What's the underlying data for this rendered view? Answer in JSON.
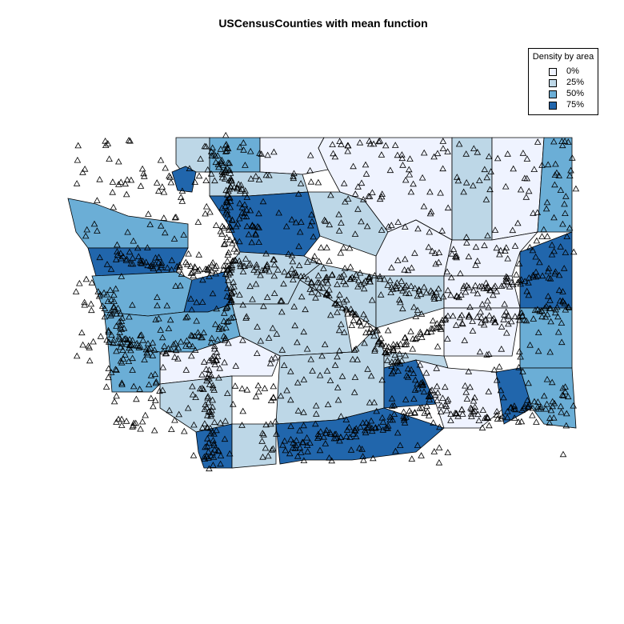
{
  "title": "USCensusCounties with mean function",
  "legend": {
    "title": "Density by area",
    "items": [
      {
        "label": "0%",
        "color": "#eff3ff"
      },
      {
        "label": "25%",
        "color": "#bdd7e7"
      },
      {
        "label": "50%",
        "color": "#6baed6"
      },
      {
        "label": "75%",
        "color": "#2166ac"
      }
    ]
  },
  "map": {
    "region": "Washington State counties",
    "marker_symbol": "open-triangle",
    "marker_color": "#000000",
    "outline_color": "#000000"
  }
}
